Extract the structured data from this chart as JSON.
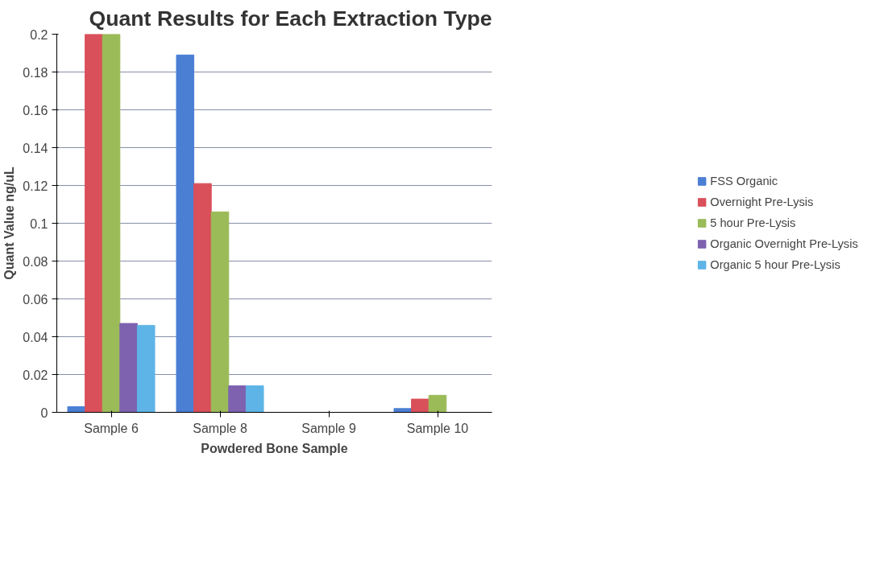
{
  "chart_data": {
    "type": "bar",
    "title": "Quant Results for Each Extraction Type",
    "xlabel": "Powdered Bone Sample",
    "ylabel": "Quant Value ng/uL",
    "categories": [
      "Sample 6",
      "Sample 8",
      "Sample 9",
      "Sample 10"
    ],
    "series": [
      {
        "name": "FSS Organic",
        "color": "#4a7fd4",
        "values": [
          0.003,
          0.189,
          0,
          0.002
        ]
      },
      {
        "name": "Overnight Pre-Lysis",
        "color": "#d9505a",
        "values": [
          0.2,
          0.121,
          0,
          0.007
        ]
      },
      {
        "name": "5 hour Pre-Lysis",
        "color": "#9bbb59",
        "values": [
          0.2,
          0.106,
          0,
          0.009
        ]
      },
      {
        "name": "Organic Overnight Pre-Lysis",
        "color": "#7e62b0",
        "values": [
          0.047,
          0.014,
          0,
          0
        ]
      },
      {
        "name": "Organic 5 hour Pre-Lysis",
        "color": "#5eb4e6",
        "values": [
          0.046,
          0.014,
          0,
          0
        ]
      }
    ],
    "ylim": [
      0,
      0.2
    ],
    "yticks": [
      0,
      0.02,
      0.04,
      0.06,
      0.08,
      0.1,
      0.12,
      0.14,
      0.16,
      0.18,
      0.2
    ],
    "grid": "y",
    "legend": "right"
  }
}
